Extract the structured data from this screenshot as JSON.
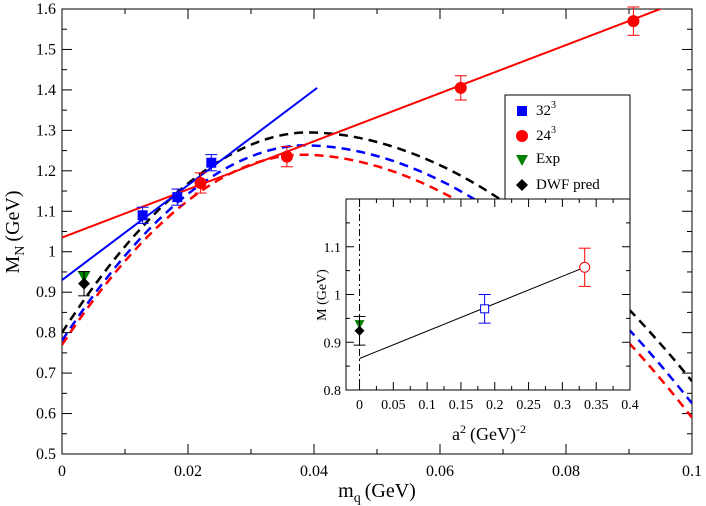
{
  "chart_data": [
    {
      "type": "scatter",
      "xlabel": "m",
      "xlabel_sub": "q",
      "xlabel_unit": "(GeV)",
      "ylabel": "M",
      "ylabel_sub": "N",
      "ylabel_unit": "(GeV)",
      "xlim": [
        0,
        0.1
      ],
      "ylim": [
        0.5,
        1.6
      ],
      "xticks": [
        "0",
        "0.02",
        "0.04",
        "0.06",
        "0.08",
        "0.1"
      ],
      "yticks": [
        "0.5",
        "0.6",
        "0.7",
        "0.8",
        "0.9",
        "1",
        "1.1",
        "1.2",
        "1.3",
        "1.4",
        "1.5",
        "1.6"
      ],
      "legend": {
        "position": "top-right",
        "entries": [
          {
            "label": "32",
            "sup": "3",
            "color": "#0000ff",
            "marker": "square"
          },
          {
            "label": "24",
            "sup": "3",
            "color": "#ff0000",
            "marker": "circle"
          },
          {
            "label": "Exp",
            "sup": "",
            "color": "#008000",
            "marker": "triangle-down"
          },
          {
            "label": "DWF pred",
            "sup": "",
            "color": "#000000",
            "marker": "diamond"
          }
        ]
      },
      "series": [
        {
          "color": "#0000ff",
          "marker": "square",
          "points": [
            {
              "x": 0.0128,
              "y": 1.09,
              "err": 0.02
            },
            {
              "x": 0.0183,
              "y": 1.135,
              "err": 0.02
            },
            {
              "x": 0.0237,
              "y": 1.22,
              "err": 0.02
            }
          ]
        },
        {
          "color": "#ff0000",
          "marker": "circle",
          "points": [
            {
              "x": 0.022,
              "y": 1.17,
              "err": 0.025
            },
            {
              "x": 0.0357,
              "y": 1.235,
              "err": 0.025
            },
            {
              "x": 0.0633,
              "y": 1.405,
              "err": 0.03
            },
            {
              "x": 0.0907,
              "y": 1.57,
              "err": 0.035
            }
          ]
        },
        {
          "color": "#008000",
          "marker": "triangle-down",
          "points": [
            {
              "x": 0.0035,
              "y": 0.938,
              "err": 0
            }
          ]
        },
        {
          "color": "#000000",
          "marker": "diamond",
          "points": [
            {
              "x": 0.0035,
              "y": 0.921,
              "err": 0.03
            }
          ]
        }
      ],
      "fit_lines": [
        {
          "color": "#0000ff",
          "style": "solid",
          "points": [
            [
              0,
              0.93
            ],
            [
              0.0405,
              1.405
            ]
          ]
        },
        {
          "color": "#ff0000",
          "style": "solid",
          "points": [
            [
              0,
              1.035
            ],
            [
              0.1,
              1.63
            ]
          ]
        }
      ],
      "curves": [
        {
          "color": "#000000",
          "style": "dashed",
          "peak_x": 0.039,
          "peak_y": 1.295,
          "points": [
            [
              0.0,
              0.8
            ],
            [
              0.1,
              0.68
            ]
          ]
        },
        {
          "color": "#0000ff",
          "style": "dashed",
          "peak_x": 0.0385,
          "peak_y": 1.263,
          "points": [
            [
              0.0,
              0.78
            ],
            [
              0.1,
              0.625
            ]
          ]
        },
        {
          "color": "#ff0000",
          "style": "dashed",
          "peak_x": 0.038,
          "peak_y": 1.24,
          "points": [
            [
              0.0,
              0.77
            ],
            [
              0.1,
              0.59
            ]
          ]
        }
      ]
    },
    {
      "type": "scatter",
      "xlabel": "a",
      "xlabel_sup": "2",
      "xlabel_unit": "(GeV)",
      "xlabel_unit_sup": "-2",
      "ylabel": "M (GeV)",
      "xlim": [
        -0.02,
        0.4
      ],
      "ylim": [
        0.8,
        1.2
      ],
      "xticks": [
        "0",
        "0.05",
        "0.1",
        "0.15",
        "0.2",
        "0.25",
        "0.3",
        "0.35",
        "0.4"
      ],
      "yticks": [
        "0.8",
        "0.9",
        "1",
        "1.1"
      ],
      "series": [
        {
          "color": "#0000ff",
          "marker": "open-square",
          "points": [
            {
              "x": 0.185,
              "y": 0.97,
              "err": 0.03
            }
          ]
        },
        {
          "color": "#ff0000",
          "marker": "open-circle",
          "points": [
            {
              "x": 0.333,
              "y": 1.057,
              "err": 0.04
            }
          ]
        },
        {
          "color": "#008000",
          "marker": "triangle-down",
          "points": [
            {
              "x": 0.0,
              "y": 0.938,
              "err": 0
            }
          ]
        },
        {
          "color": "#000000",
          "marker": "diamond",
          "points": [
            {
              "x": 0.0,
              "y": 0.924,
              "err": 0.03
            }
          ]
        }
      ],
      "fit_lines": [
        {
          "color": "#000000",
          "style": "solid",
          "points": [
            [
              0,
              0.866
            ],
            [
              0.333,
              1.057
            ]
          ]
        }
      ]
    }
  ]
}
